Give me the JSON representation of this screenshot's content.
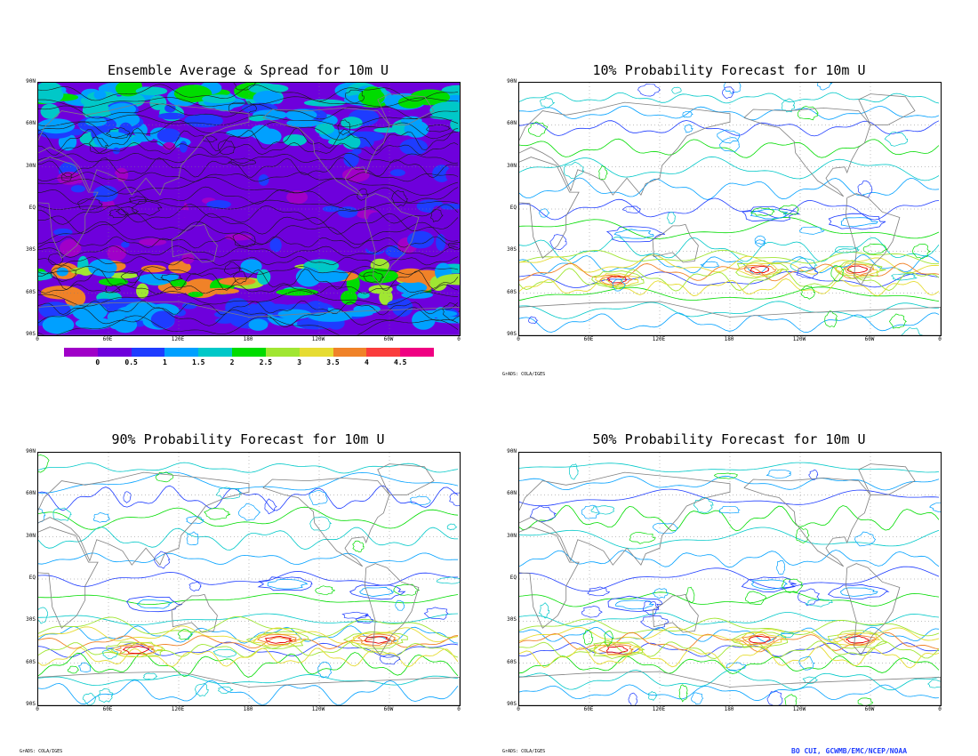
{
  "panels": [
    {
      "id": "avg",
      "title": "Ensemble Average & Spread for 10m U",
      "style": "filled"
    },
    {
      "id": "p10",
      "title": "10% Probability Forecast for 10m U",
      "style": "contour"
    },
    {
      "id": "p90",
      "title": "90% Probability Forecast for 10m U",
      "style": "contour"
    },
    {
      "id": "p50",
      "title": "50% Probability Forecast for 10m U",
      "style": "contour"
    }
  ],
  "lat_labels": [
    "90N",
    "60N",
    "30N",
    "EQ",
    "30S",
    "60S",
    "90S"
  ],
  "lon_labels": [
    "0",
    "60E",
    "120E",
    "180",
    "120W",
    "60W",
    "0"
  ],
  "colorbar": {
    "labels": [
      "0",
      "0.5",
      "1",
      "1.5",
      "2",
      "2.5",
      "3",
      "3.5",
      "4",
      "4.5"
    ],
    "colors": [
      "#a000c8",
      "#6e00dc",
      "#1e3cff",
      "#00a0ff",
      "#00c8c8",
      "#00dc00",
      "#a0e632",
      "#e6dc32",
      "#f08228",
      "#fa3c3c",
      "#f00082"
    ]
  },
  "grads_label": "GrADS: COLA/IGES",
  "credit": "BO CUI, GCWMB/EMC/NCEP/NOAA",
  "contour_colors": [
    "#00c8c8",
    "#00a0ff",
    "#1e3cff",
    "#00dc00",
    "#a0e632",
    "#e6dc32",
    "#f08228",
    "#e60000"
  ],
  "map_colors": {
    "coast": "#7f7f7f",
    "grid": "#808080",
    "contour_dark": "#1a1a1a"
  }
}
